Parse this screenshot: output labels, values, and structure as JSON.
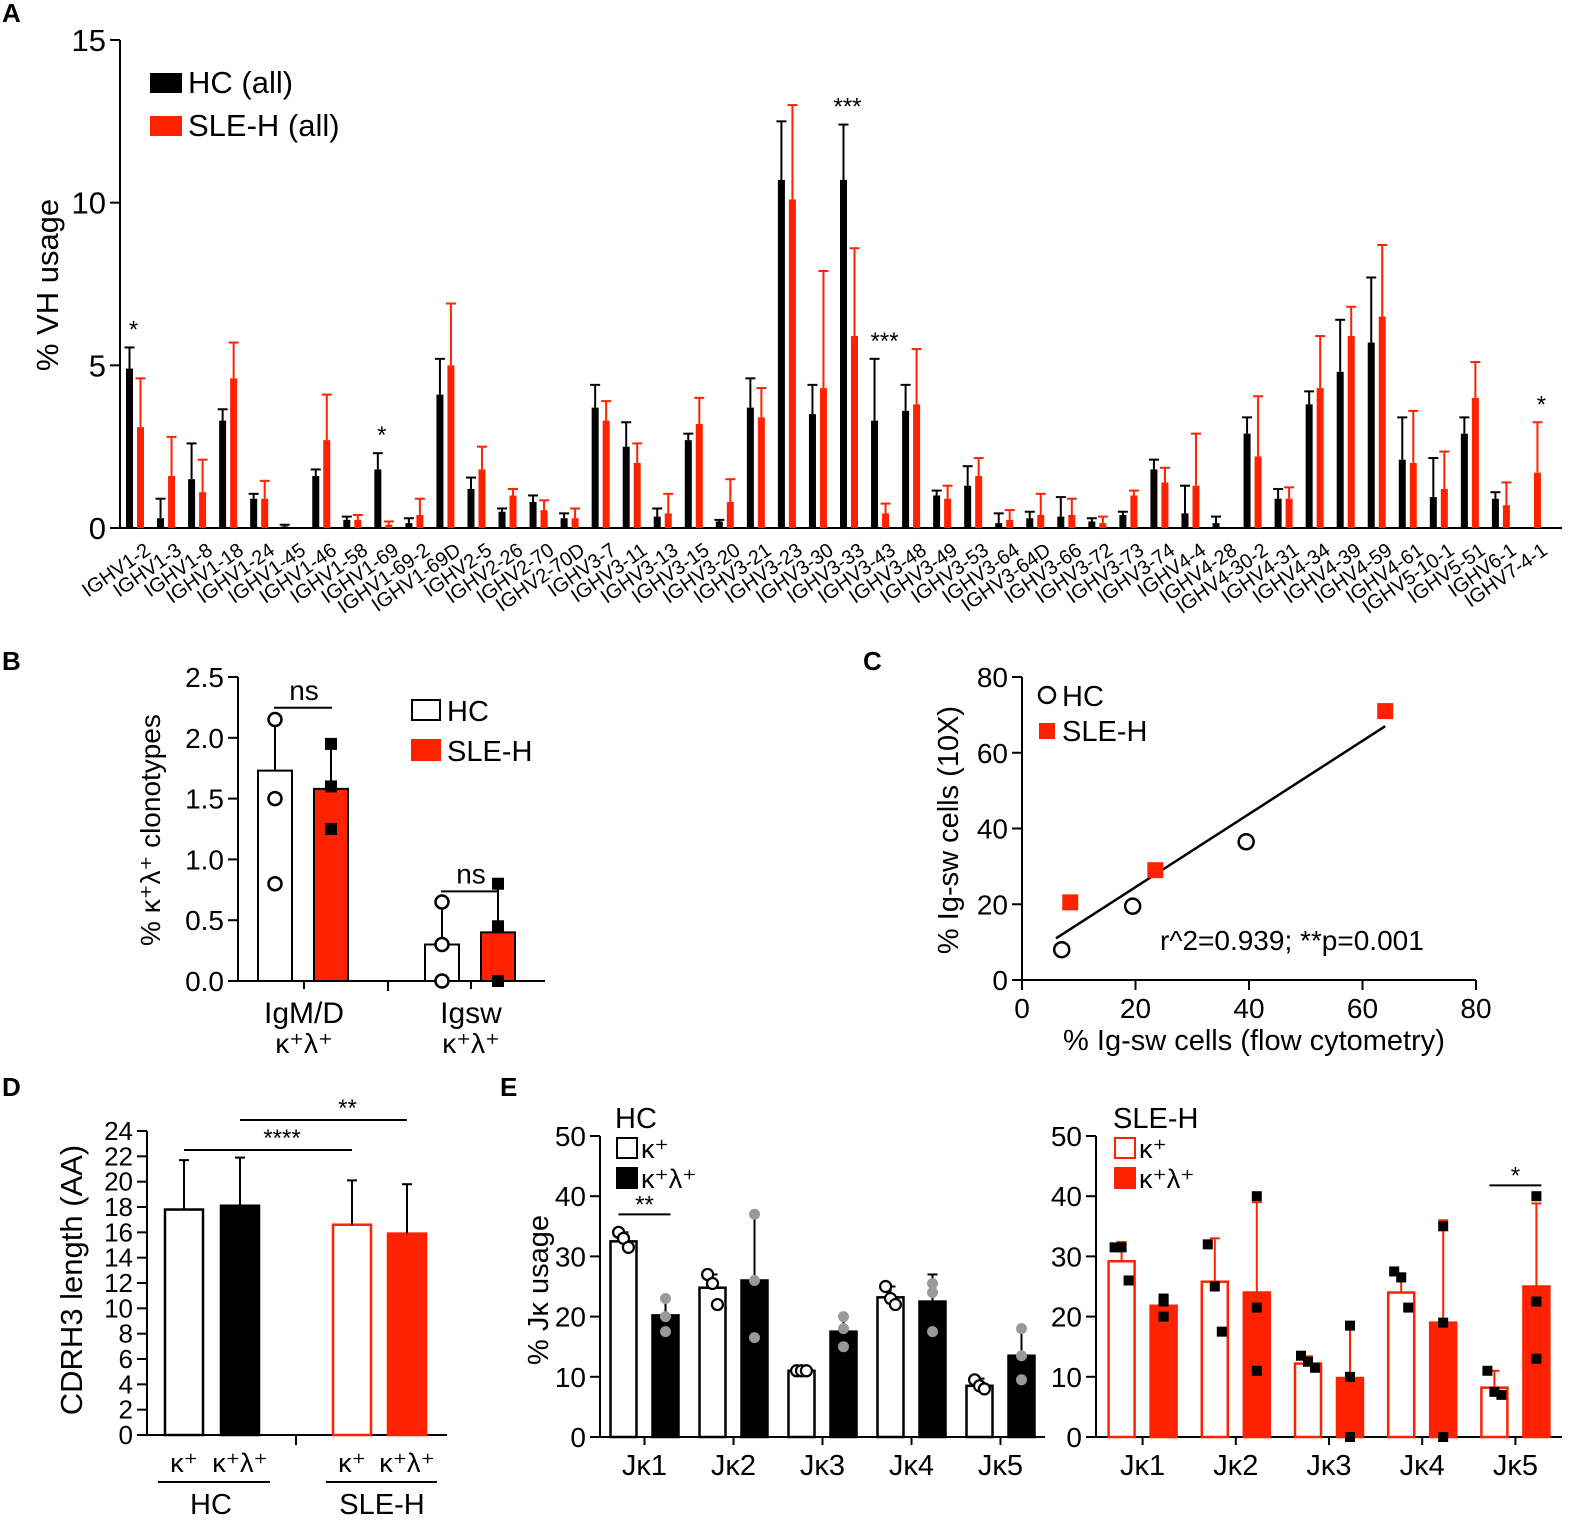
{
  "colors": {
    "hc": "#000000",
    "sle": "#ff2200",
    "dot_light": "#999999"
  },
  "panel_labels": {
    "a": "A",
    "b": "B",
    "c": "C",
    "d": "D",
    "e": "E"
  },
  "chart_data": [
    {
      "id": "A",
      "type": "bar",
      "title": "",
      "ylabel": "% VH usage",
      "ylim": [
        0,
        15
      ],
      "yticks": [
        0,
        5,
        10,
        15
      ],
      "categories": [
        "IGHV1-2",
        "IGHV1-3",
        "IGHV1-8",
        "IGHV1-18",
        "IGHV1-24",
        "IGHV1-45",
        "IGHV1-46",
        "IGHV1-58",
        "IGHV1-69",
        "IGHV1-69-2",
        "IGHV1-69D",
        "IGHV2-5",
        "IGHV2-26",
        "IGHV2-70",
        "IGHV2-70D",
        "IGHV3-7",
        "IGHV3-11",
        "IGHV3-13",
        "IGHV3-15",
        "IGHV3-20",
        "IGHV3-21",
        "IGHV3-23",
        "IGHV3-30",
        "IGHV3-33",
        "IGHV3-43",
        "IGHV3-48",
        "IGHV3-49",
        "IGHV3-53",
        "IGHV3-64",
        "IGHV3-64D",
        "IGHV3-66",
        "IGHV3-72",
        "IGHV3-73",
        "IGHV3-74",
        "IGHV4-4",
        "IGHV4-28",
        "IGHV4-30-2",
        "IGHV4-31",
        "IGHV4-34",
        "IGHV4-39",
        "IGHV4-59",
        "IGHV4-61",
        "IGHV5-10-1",
        "IGHV5-51",
        "IGHV6-1",
        "IGHV7-4-1"
      ],
      "series": [
        {
          "name": "HC (all)",
          "values": [
            4.9,
            0.3,
            1.5,
            3.3,
            0.9,
            0.05,
            1.6,
            0.25,
            1.8,
            0.15,
            4.1,
            1.2,
            0.5,
            0.8,
            0.3,
            3.7,
            2.5,
            0.35,
            2.7,
            0.2,
            3.7,
            10.7,
            3.5,
            10.7,
            3.3,
            3.6,
            1.0,
            1.3,
            0.15,
            0.3,
            0.35,
            0.2,
            0.4,
            1.8,
            0.45,
            0.15,
            2.9,
            0.9,
            3.8,
            4.8,
            5.7,
            2.1,
            0.95,
            2.9,
            0.9,
            0.0
          ],
          "errors": [
            0.65,
            0.6,
            1.1,
            0.35,
            0.15,
            0.05,
            0.2,
            0.1,
            0.5,
            0.15,
            1.1,
            0.35,
            0.1,
            0.2,
            0.15,
            0.7,
            0.75,
            0.25,
            0.2,
            0.05,
            0.9,
            1.8,
            0.9,
            1.7,
            1.9,
            0.8,
            0.15,
            0.6,
            0.3,
            0.2,
            0.6,
            0.1,
            0.1,
            0.3,
            0.85,
            0.2,
            0.5,
            0.3,
            0.4,
            1.6,
            2.0,
            1.3,
            1.2,
            0.5,
            0.2,
            0.0
          ]
        },
        {
          "name": "SLE-H (all)",
          "values": [
            3.1,
            1.6,
            1.1,
            4.6,
            0.9,
            0.0,
            2.7,
            0.25,
            0.1,
            0.4,
            5.0,
            1.8,
            1.0,
            0.55,
            0.3,
            3.3,
            2.0,
            0.45,
            3.2,
            0.8,
            3.4,
            10.1,
            4.3,
            5.9,
            0.45,
            3.8,
            0.9,
            1.6,
            0.25,
            0.4,
            0.4,
            0.15,
            1.0,
            1.4,
            1.3,
            0.0,
            2.2,
            0.9,
            4.3,
            5.9,
            6.5,
            2.0,
            1.2,
            4.0,
            0.7,
            1.7
          ],
          "errors": [
            1.5,
            1.2,
            1.0,
            1.1,
            0.55,
            0.0,
            1.4,
            0.15,
            0.1,
            0.5,
            1.9,
            0.7,
            0.2,
            0.3,
            0.3,
            0.6,
            0.6,
            0.6,
            0.8,
            0.7,
            0.9,
            2.9,
            3.6,
            2.7,
            0.3,
            1.7,
            0.4,
            0.55,
            0.3,
            0.65,
            0.5,
            0.2,
            0.15,
            0.45,
            1.6,
            0.0,
            1.85,
            0.35,
            1.6,
            0.9,
            2.2,
            1.6,
            1.15,
            1.1,
            0.7,
            1.55
          ]
        }
      ],
      "annotations": [
        {
          "category": "IGHV1-2",
          "text": "*"
        },
        {
          "category": "IGHV1-69",
          "text": "*"
        },
        {
          "category": "IGHV3-33",
          "text": "***"
        },
        {
          "category": "IGHV3-43",
          "text": "***"
        },
        {
          "category": "IGHV7-4-1",
          "text": "*"
        }
      ],
      "legend": {
        "position": "top-left",
        "entries": [
          "HC (all)",
          "SLE-H (all)"
        ]
      }
    },
    {
      "id": "B",
      "type": "bar",
      "ylabel": "% κ⁺λ⁺ clonotypes",
      "ylim": [
        0,
        2.5
      ],
      "yticks": [
        "0.0",
        "0.5",
        "1.0",
        "1.5",
        "2.0",
        "2.5"
      ],
      "categories": [
        {
          "line1": "IgM/D",
          "line2": "κ⁺λ⁺"
        },
        {
          "line1": "Igsw",
          "line2": "κ⁺λ⁺"
        }
      ],
      "series": [
        {
          "name": "HC",
          "style": "open",
          "values": [
            1.73,
            0.3
          ],
          "errors": [
            0.43,
            0.35
          ],
          "points": [
            [
              2.15,
              1.5,
              0.8
            ],
            [
              0.65,
              0.3,
              0.0
            ]
          ]
        },
        {
          "name": "SLE-H",
          "style": "filled",
          "values": [
            1.58,
            0.4
          ],
          "errors": [
            0.4,
            0.4
          ],
          "points": [
            [
              1.95,
              1.6,
              1.25
            ],
            [
              0.8,
              0.45,
              0.0
            ]
          ]
        }
      ],
      "comparisons": [
        {
          "text": "ns",
          "group": 0
        },
        {
          "text": "ns",
          "group": 1
        }
      ],
      "legend": {
        "position": "top-right",
        "entries": [
          "HC",
          "SLE-H"
        ]
      }
    },
    {
      "id": "C",
      "type": "scatter",
      "xlabel": "% Ig-sw cells (flow cytometry)",
      "ylabel": "% Ig-sw cells (10X)",
      "xlim": [
        0,
        80
      ],
      "ylim": [
        0,
        80
      ],
      "xticks": [
        0,
        20,
        40,
        60,
        80
      ],
      "yticks": [
        0,
        20,
        40,
        60,
        80
      ],
      "series": [
        {
          "name": "HC",
          "marker": "circle",
          "x": [
            7,
            19.5,
            39.5
          ],
          "y": [
            8,
            19.5,
            36.5
          ]
        },
        {
          "name": "SLE-H",
          "marker": "square",
          "x": [
            8.5,
            23.5,
            64
          ],
          "y": [
            20.5,
            29,
            71
          ]
        }
      ],
      "fit": {
        "x": [
          6,
          64
        ],
        "y": [
          11,
          67
        ]
      },
      "stats_text": "r^2=0.939; **p=0.001",
      "legend": {
        "position": "top-left",
        "entries": [
          "HC",
          "SLE-H"
        ]
      }
    },
    {
      "id": "D",
      "type": "bar",
      "ylabel": "CDRH3 length (AA)",
      "ylim": [
        0,
        24
      ],
      "yticks": [
        0,
        2,
        4,
        6,
        8,
        10,
        12,
        14,
        16,
        18,
        20,
        22,
        24
      ],
      "categories": [
        "κ⁺",
        "κ⁺λ⁺",
        "κ⁺",
        "κ⁺λ⁺"
      ],
      "groups": [
        "HC",
        "SLE-H"
      ],
      "values": [
        17.8,
        18.1,
        16.6,
        15.9
      ],
      "errors": [
        3.9,
        3.8,
        3.5,
        3.9
      ],
      "comparisons": [
        {
          "text": "****",
          "from": 0,
          "to": 2
        },
        {
          "text": "**",
          "from": 1,
          "to": 3
        }
      ]
    },
    {
      "id": "E-HC",
      "type": "bar",
      "ylabel": "% Jκ usage",
      "ylim": [
        0,
        50
      ],
      "yticks": [
        0,
        10,
        20,
        30,
        40,
        50
      ],
      "categories": [
        "Jκ1",
        "Jκ2",
        "Jκ3",
        "Jκ4",
        "Jκ5"
      ],
      "legend_title": "HC",
      "series": [
        {
          "name": "κ⁺",
          "style": "open",
          "values": [
            32.5,
            24.8,
            11.0,
            23.2,
            8.5
          ],
          "errors": [
            1.5,
            2.2,
            0.3,
            1.8,
            1.2
          ],
          "points": [
            [
              34,
              33,
              31.5
            ],
            [
              27,
              25.5,
              22
            ],
            [
              11,
              11,
              11
            ],
            [
              25,
              23,
              22
            ],
            [
              9.5,
              8.5,
              8
            ]
          ]
        },
        {
          "name": "κ⁺λ⁺",
          "style": "filled",
          "values": [
            20.2,
            26.0,
            17.5,
            22.5,
            13.5
          ],
          "errors": [
            2.8,
            10.8,
            2.5,
            4.5,
            4.3
          ],
          "points": [
            [
              23,
              20,
              17.5
            ],
            [
              37,
              26,
              16.5
            ],
            [
              20,
              18,
              15
            ],
            [
              25.5,
              24,
              17.5
            ],
            [
              18,
              13.5,
              9.5
            ]
          ]
        }
      ],
      "comparisons": [
        {
          "text": "**",
          "category": "Jκ1"
        }
      ]
    },
    {
      "id": "E-SLE",
      "type": "bar",
      "ylabel": "",
      "ylim": [
        0,
        50
      ],
      "yticks": [
        0,
        10,
        20,
        30,
        40,
        50
      ],
      "categories": [
        "Jκ1",
        "Jκ2",
        "Jκ3",
        "Jκ4",
        "Jκ5"
      ],
      "legend_title": "SLE-H",
      "series": [
        {
          "name": "κ⁺",
          "style": "open",
          "values": [
            29.2,
            25.8,
            12.2,
            24.0,
            8.2
          ],
          "errors": [
            3.2,
            7.2,
            1.2,
            3.2,
            2.8
          ],
          "points": [
            [
              31.5,
              31.5,
              26
            ],
            [
              32,
              25,
              17.5
            ],
            [
              13.5,
              12.5,
              11.5
            ],
            [
              27.5,
              26.5,
              21.5
            ],
            [
              11,
              7.5,
              7
            ]
          ]
        },
        {
          "name": "κ⁺λ⁺",
          "style": "filled",
          "values": [
            21.8,
            24.0,
            9.8,
            19.0,
            25.0
          ],
          "errors": [
            1.6,
            15.0,
            8.8,
            17.0,
            13.8
          ],
          "points": [
            [
              23,
              22.5,
              20
            ],
            [
              40,
              21.5,
              11
            ],
            [
              18.5,
              10,
              0
            ],
            [
              35,
              19,
              0
            ],
            [
              40,
              22.5,
              13
            ]
          ]
        }
      ],
      "comparisons": [
        {
          "text": "*",
          "category": "Jκ5"
        }
      ]
    }
  ]
}
